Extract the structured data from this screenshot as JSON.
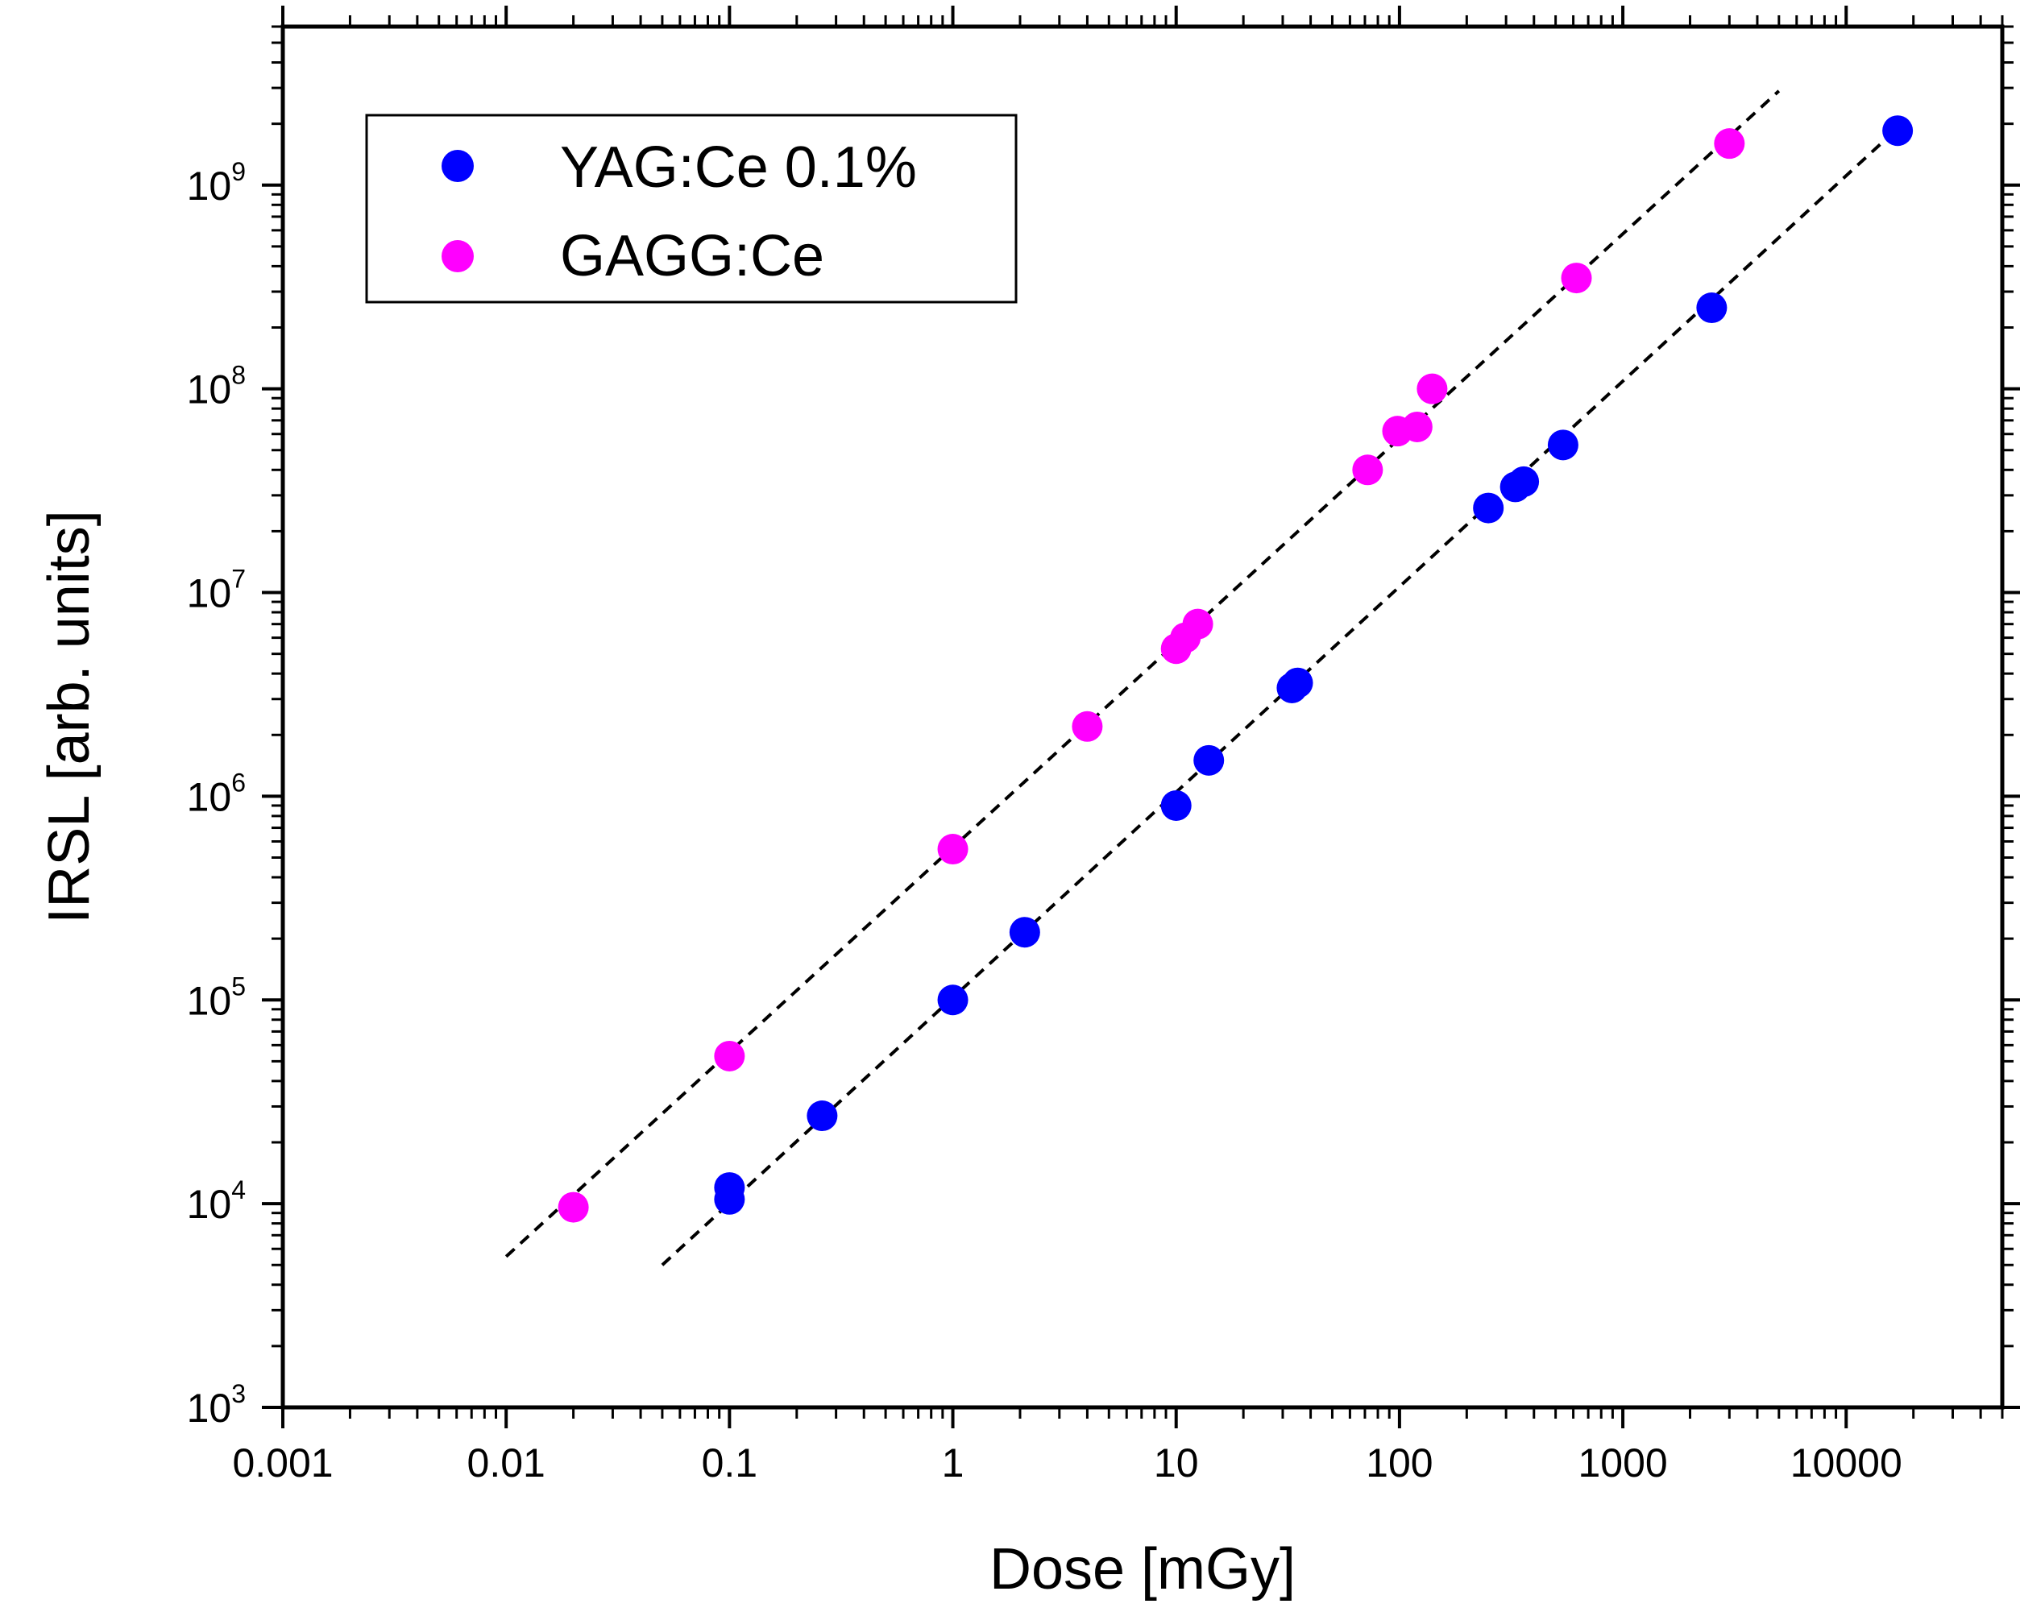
{
  "chart_data": {
    "type": "scatter",
    "xscale": "log",
    "yscale": "log",
    "xlabel": "Dose [mGy]",
    "ylabel": "IRSL [arb. units]",
    "xlim": [
      0.001,
      50000
    ],
    "ylim": [
      1000,
      6000000000
    ],
    "x_ticks": [
      {
        "value": 0.001,
        "label": "0.001"
      },
      {
        "value": 0.01,
        "label": "0.01"
      },
      {
        "value": 0.1,
        "label": "0.1"
      },
      {
        "value": 1,
        "label": "1"
      },
      {
        "value": 10,
        "label": "10"
      },
      {
        "value": 100,
        "label": "100"
      },
      {
        "value": 1000,
        "label": "1000"
      },
      {
        "value": 10000,
        "label": "10000"
      }
    ],
    "y_ticks": [
      {
        "value": 1000,
        "base": "10",
        "exp": "3"
      },
      {
        "value": 10000,
        "base": "10",
        "exp": "4"
      },
      {
        "value": 100000,
        "base": "10",
        "exp": "5"
      },
      {
        "value": 1000000,
        "base": "10",
        "exp": "6"
      },
      {
        "value": 10000000,
        "base": "10",
        "exp": "7"
      },
      {
        "value": 100000000,
        "base": "10",
        "exp": "8"
      },
      {
        "value": 1000000000,
        "base": "10",
        "exp": "9"
      }
    ],
    "legend_position": "top-left",
    "series": [
      {
        "name": "YAG:Ce 0.1%",
        "color": "#0000ff",
        "points": [
          [
            0.1,
            10500
          ],
          [
            0.1,
            12000
          ],
          [
            0.26,
            27000
          ],
          [
            1,
            100000
          ],
          [
            2.1,
            215000
          ],
          [
            10,
            900000
          ],
          [
            14,
            1500000
          ],
          [
            33,
            3400000
          ],
          [
            35,
            3600000
          ],
          [
            250,
            26000000
          ],
          [
            330,
            33000000
          ],
          [
            360,
            35000000
          ],
          [
            540,
            53000000
          ],
          [
            2500,
            250000000
          ],
          [
            17000,
            1850000000
          ]
        ],
        "fit": {
          "x": [
            0.05,
            17000
          ],
          "y": [
            5000,
            1900000000
          ]
        }
      },
      {
        "name": "GAGG:Ce",
        "color": "#ff00ff",
        "points": [
          [
            0.02,
            9600
          ],
          [
            0.1,
            53000
          ],
          [
            1,
            550000
          ],
          [
            4,
            2200000
          ],
          [
            10,
            5300000
          ],
          [
            11,
            6000000
          ],
          [
            12.5,
            7000000
          ],
          [
            72,
            40000000
          ],
          [
            98,
            62000000
          ],
          [
            120,
            65000000
          ],
          [
            140,
            100000000
          ],
          [
            620,
            350000000
          ],
          [
            3000,
            1600000000
          ]
        ],
        "fit": {
          "x": [
            0.01,
            5000
          ],
          "y": [
            5500,
            2900000000
          ]
        }
      }
    ]
  }
}
